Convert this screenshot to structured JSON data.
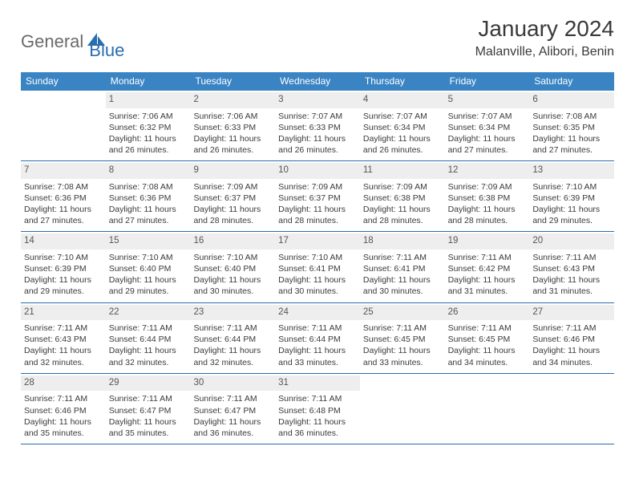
{
  "logo": {
    "text1": "General",
    "text2": "Blue"
  },
  "title": "January 2024",
  "location": "Malanville, Alibori, Benin",
  "weekdays": [
    "Sunday",
    "Monday",
    "Tuesday",
    "Wednesday",
    "Thursday",
    "Friday",
    "Saturday"
  ],
  "colors": {
    "header_bg": "#3a84c4",
    "header_fg": "#ffffff",
    "daynum_bg": "#eeeeee",
    "rule": "#2a6db0",
    "logo_gray": "#6a6a6a",
    "logo_blue": "#2a6db0"
  },
  "weeks": [
    [
      {
        "num": "",
        "sunrise": "",
        "sunset": "",
        "daylight1": "",
        "daylight2": ""
      },
      {
        "num": "1",
        "sunrise": "Sunrise: 7:06 AM",
        "sunset": "Sunset: 6:32 PM",
        "daylight1": "Daylight: 11 hours",
        "daylight2": "and 26 minutes."
      },
      {
        "num": "2",
        "sunrise": "Sunrise: 7:06 AM",
        "sunset": "Sunset: 6:33 PM",
        "daylight1": "Daylight: 11 hours",
        "daylight2": "and 26 minutes."
      },
      {
        "num": "3",
        "sunrise": "Sunrise: 7:07 AM",
        "sunset": "Sunset: 6:33 PM",
        "daylight1": "Daylight: 11 hours",
        "daylight2": "and 26 minutes."
      },
      {
        "num": "4",
        "sunrise": "Sunrise: 7:07 AM",
        "sunset": "Sunset: 6:34 PM",
        "daylight1": "Daylight: 11 hours",
        "daylight2": "and 26 minutes."
      },
      {
        "num": "5",
        "sunrise": "Sunrise: 7:07 AM",
        "sunset": "Sunset: 6:34 PM",
        "daylight1": "Daylight: 11 hours",
        "daylight2": "and 27 minutes."
      },
      {
        "num": "6",
        "sunrise": "Sunrise: 7:08 AM",
        "sunset": "Sunset: 6:35 PM",
        "daylight1": "Daylight: 11 hours",
        "daylight2": "and 27 minutes."
      }
    ],
    [
      {
        "num": "7",
        "sunrise": "Sunrise: 7:08 AM",
        "sunset": "Sunset: 6:36 PM",
        "daylight1": "Daylight: 11 hours",
        "daylight2": "and 27 minutes."
      },
      {
        "num": "8",
        "sunrise": "Sunrise: 7:08 AM",
        "sunset": "Sunset: 6:36 PM",
        "daylight1": "Daylight: 11 hours",
        "daylight2": "and 27 minutes."
      },
      {
        "num": "9",
        "sunrise": "Sunrise: 7:09 AM",
        "sunset": "Sunset: 6:37 PM",
        "daylight1": "Daylight: 11 hours",
        "daylight2": "and 28 minutes."
      },
      {
        "num": "10",
        "sunrise": "Sunrise: 7:09 AM",
        "sunset": "Sunset: 6:37 PM",
        "daylight1": "Daylight: 11 hours",
        "daylight2": "and 28 minutes."
      },
      {
        "num": "11",
        "sunrise": "Sunrise: 7:09 AM",
        "sunset": "Sunset: 6:38 PM",
        "daylight1": "Daylight: 11 hours",
        "daylight2": "and 28 minutes."
      },
      {
        "num": "12",
        "sunrise": "Sunrise: 7:09 AM",
        "sunset": "Sunset: 6:38 PM",
        "daylight1": "Daylight: 11 hours",
        "daylight2": "and 28 minutes."
      },
      {
        "num": "13",
        "sunrise": "Sunrise: 7:10 AM",
        "sunset": "Sunset: 6:39 PM",
        "daylight1": "Daylight: 11 hours",
        "daylight2": "and 29 minutes."
      }
    ],
    [
      {
        "num": "14",
        "sunrise": "Sunrise: 7:10 AM",
        "sunset": "Sunset: 6:39 PM",
        "daylight1": "Daylight: 11 hours",
        "daylight2": "and 29 minutes."
      },
      {
        "num": "15",
        "sunrise": "Sunrise: 7:10 AM",
        "sunset": "Sunset: 6:40 PM",
        "daylight1": "Daylight: 11 hours",
        "daylight2": "and 29 minutes."
      },
      {
        "num": "16",
        "sunrise": "Sunrise: 7:10 AM",
        "sunset": "Sunset: 6:40 PM",
        "daylight1": "Daylight: 11 hours",
        "daylight2": "and 30 minutes."
      },
      {
        "num": "17",
        "sunrise": "Sunrise: 7:10 AM",
        "sunset": "Sunset: 6:41 PM",
        "daylight1": "Daylight: 11 hours",
        "daylight2": "and 30 minutes."
      },
      {
        "num": "18",
        "sunrise": "Sunrise: 7:11 AM",
        "sunset": "Sunset: 6:41 PM",
        "daylight1": "Daylight: 11 hours",
        "daylight2": "and 30 minutes."
      },
      {
        "num": "19",
        "sunrise": "Sunrise: 7:11 AM",
        "sunset": "Sunset: 6:42 PM",
        "daylight1": "Daylight: 11 hours",
        "daylight2": "and 31 minutes."
      },
      {
        "num": "20",
        "sunrise": "Sunrise: 7:11 AM",
        "sunset": "Sunset: 6:43 PM",
        "daylight1": "Daylight: 11 hours",
        "daylight2": "and 31 minutes."
      }
    ],
    [
      {
        "num": "21",
        "sunrise": "Sunrise: 7:11 AM",
        "sunset": "Sunset: 6:43 PM",
        "daylight1": "Daylight: 11 hours",
        "daylight2": "and 32 minutes."
      },
      {
        "num": "22",
        "sunrise": "Sunrise: 7:11 AM",
        "sunset": "Sunset: 6:44 PM",
        "daylight1": "Daylight: 11 hours",
        "daylight2": "and 32 minutes."
      },
      {
        "num": "23",
        "sunrise": "Sunrise: 7:11 AM",
        "sunset": "Sunset: 6:44 PM",
        "daylight1": "Daylight: 11 hours",
        "daylight2": "and 32 minutes."
      },
      {
        "num": "24",
        "sunrise": "Sunrise: 7:11 AM",
        "sunset": "Sunset: 6:44 PM",
        "daylight1": "Daylight: 11 hours",
        "daylight2": "and 33 minutes."
      },
      {
        "num": "25",
        "sunrise": "Sunrise: 7:11 AM",
        "sunset": "Sunset: 6:45 PM",
        "daylight1": "Daylight: 11 hours",
        "daylight2": "and 33 minutes."
      },
      {
        "num": "26",
        "sunrise": "Sunrise: 7:11 AM",
        "sunset": "Sunset: 6:45 PM",
        "daylight1": "Daylight: 11 hours",
        "daylight2": "and 34 minutes."
      },
      {
        "num": "27",
        "sunrise": "Sunrise: 7:11 AM",
        "sunset": "Sunset: 6:46 PM",
        "daylight1": "Daylight: 11 hours",
        "daylight2": "and 34 minutes."
      }
    ],
    [
      {
        "num": "28",
        "sunrise": "Sunrise: 7:11 AM",
        "sunset": "Sunset: 6:46 PM",
        "daylight1": "Daylight: 11 hours",
        "daylight2": "and 35 minutes."
      },
      {
        "num": "29",
        "sunrise": "Sunrise: 7:11 AM",
        "sunset": "Sunset: 6:47 PM",
        "daylight1": "Daylight: 11 hours",
        "daylight2": "and 35 minutes."
      },
      {
        "num": "30",
        "sunrise": "Sunrise: 7:11 AM",
        "sunset": "Sunset: 6:47 PM",
        "daylight1": "Daylight: 11 hours",
        "daylight2": "and 36 minutes."
      },
      {
        "num": "31",
        "sunrise": "Sunrise: 7:11 AM",
        "sunset": "Sunset: 6:48 PM",
        "daylight1": "Daylight: 11 hours",
        "daylight2": "and 36 minutes."
      },
      {
        "num": "",
        "sunrise": "",
        "sunset": "",
        "daylight1": "",
        "daylight2": ""
      },
      {
        "num": "",
        "sunrise": "",
        "sunset": "",
        "daylight1": "",
        "daylight2": ""
      },
      {
        "num": "",
        "sunrise": "",
        "sunset": "",
        "daylight1": "",
        "daylight2": ""
      }
    ]
  ]
}
